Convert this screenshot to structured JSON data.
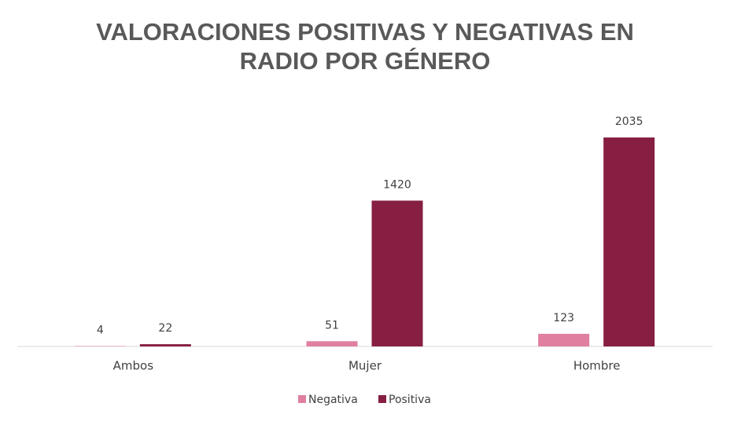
{
  "chart_data": {
    "type": "bar",
    "title": "VALORACIONES POSITIVAS Y NEGATIVAS EN RADIO POR GÉNERO",
    "categories": [
      "Ambos",
      "Mujer",
      "Hombre"
    ],
    "series": [
      {
        "name": "Negativa",
        "color": "#e07fa0",
        "values": [
          4,
          51,
          123
        ]
      },
      {
        "name": "Positiva",
        "color": "#861f41",
        "values": [
          22,
          1420,
          2035
        ]
      }
    ],
    "legend": "bottom"
  }
}
